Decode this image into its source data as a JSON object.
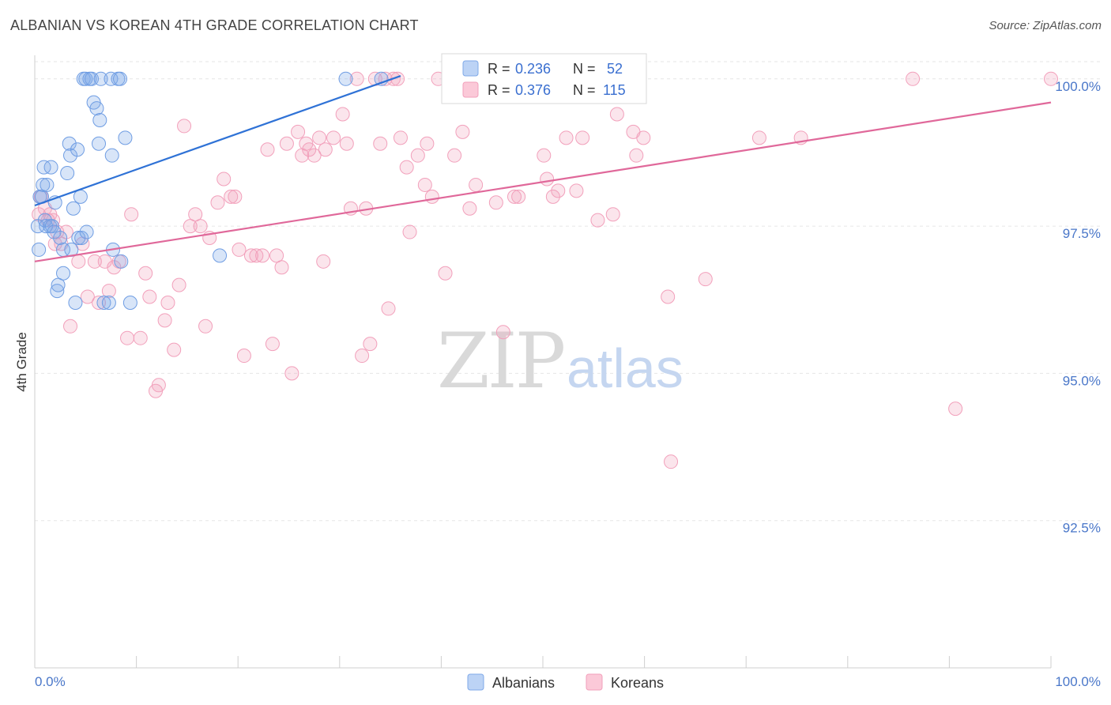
{
  "header": {
    "title": "ALBANIAN VS KOREAN 4TH GRADE CORRELATION CHART",
    "source": "Source: ZipAtlas.com"
  },
  "watermark": {
    "zip": "ZIP",
    "atlas": "atlas"
  },
  "legend": {
    "r_label": "R =",
    "n_label": "N =",
    "albanians": {
      "r": "0.236",
      "n": "52"
    },
    "koreans": {
      "r": "0.376",
      "n": "115"
    }
  },
  "chart_data": {
    "type": "scatter",
    "title": "ALBANIAN VS KOREAN 4TH GRADE CORRELATION CHART",
    "xlabel": "",
    "ylabel": "4th Grade",
    "xlim": [
      0,
      100
    ],
    "ylim": [
      90.0,
      100.4
    ],
    "x_tick_labels": [
      "0.0%",
      "100.0%"
    ],
    "y_ticks": [
      100.0,
      97.5,
      95.0,
      92.5
    ],
    "y_tick_labels": [
      "100.0%",
      "97.5%",
      "95.0%",
      "92.5%"
    ],
    "grid": true,
    "colors": {
      "albanians": "#7fa9e8",
      "albanians_line": "#2f72d6",
      "koreans": "#f2a0bb",
      "koreans_line": "#e0689a"
    },
    "series": [
      {
        "name": "Albanians",
        "r": 0.236,
        "n": 52,
        "trend": {
          "x": [
            0,
            36
          ],
          "y": [
            97.85,
            100.05
          ]
        },
        "points": [
          [
            0.3,
            97.5
          ],
          [
            0.4,
            97.1
          ],
          [
            0.5,
            98.0
          ],
          [
            0.7,
            98.0
          ],
          [
            0.8,
            98.2
          ],
          [
            0.9,
            98.5
          ],
          [
            1.0,
            97.6
          ],
          [
            1.1,
            97.5
          ],
          [
            1.2,
            98.2
          ],
          [
            1.5,
            97.5
          ],
          [
            1.6,
            98.5
          ],
          [
            1.7,
            97.5
          ],
          [
            1.9,
            97.4
          ],
          [
            2.0,
            97.9
          ],
          [
            2.2,
            96.4
          ],
          [
            2.3,
            96.5
          ],
          [
            2.5,
            97.3
          ],
          [
            2.8,
            96.7
          ],
          [
            2.8,
            97.1
          ],
          [
            3.2,
            98.4
          ],
          [
            3.4,
            98.9
          ],
          [
            3.5,
            98.7
          ],
          [
            3.6,
            97.1
          ],
          [
            3.8,
            97.8
          ],
          [
            4.0,
            96.2
          ],
          [
            4.2,
            98.8
          ],
          [
            4.3,
            97.3
          ],
          [
            4.5,
            98.0
          ],
          [
            4.6,
            97.3
          ],
          [
            4.8,
            100.0
          ],
          [
            5.0,
            100.0
          ],
          [
            5.1,
            97.4
          ],
          [
            5.4,
            100.0
          ],
          [
            5.6,
            100.0
          ],
          [
            5.8,
            99.6
          ],
          [
            6.1,
            99.5
          ],
          [
            6.3,
            98.9
          ],
          [
            6.4,
            99.3
          ],
          [
            6.5,
            100.0
          ],
          [
            6.8,
            96.2
          ],
          [
            7.3,
            96.2
          ],
          [
            7.5,
            100.0
          ],
          [
            7.6,
            98.7
          ],
          [
            7.7,
            97.1
          ],
          [
            8.2,
            100.0
          ],
          [
            8.4,
            100.0
          ],
          [
            8.5,
            96.9
          ],
          [
            8.9,
            99.0
          ],
          [
            9.4,
            96.2
          ],
          [
            18.2,
            97.0
          ],
          [
            30.6,
            100.0
          ],
          [
            34.1,
            100.0
          ]
        ]
      },
      {
        "name": "Koreans",
        "r": 0.376,
        "n": 115,
        "trend": {
          "x": [
            0,
            100
          ],
          "y": [
            96.9,
            99.6
          ]
        },
        "points": [
          [
            0.4,
            97.7
          ],
          [
            0.6,
            98.0
          ],
          [
            1.0,
            97.8
          ],
          [
            1.3,
            97.6
          ],
          [
            1.5,
            97.7
          ],
          [
            1.8,
            97.6
          ],
          [
            2.0,
            97.2
          ],
          [
            2.2,
            97.4
          ],
          [
            2.6,
            97.2
          ],
          [
            3.1,
            97.4
          ],
          [
            3.5,
            95.8
          ],
          [
            4.3,
            96.9
          ],
          [
            4.7,
            97.2
          ],
          [
            5.2,
            96.3
          ],
          [
            5.9,
            96.9
          ],
          [
            6.3,
            96.2
          ],
          [
            6.9,
            96.9
          ],
          [
            7.3,
            96.4
          ],
          [
            7.8,
            96.8
          ],
          [
            8.3,
            96.9
          ],
          [
            9.1,
            95.6
          ],
          [
            9.5,
            97.7
          ],
          [
            10.4,
            95.6
          ],
          [
            10.9,
            96.7
          ],
          [
            11.3,
            96.3
          ],
          [
            11.9,
            94.7
          ],
          [
            12.2,
            94.8
          ],
          [
            12.8,
            95.9
          ],
          [
            13.1,
            96.2
          ],
          [
            13.7,
            95.4
          ],
          [
            14.2,
            96.5
          ],
          [
            14.7,
            99.2
          ],
          [
            15.3,
            97.5
          ],
          [
            15.8,
            97.7
          ],
          [
            16.3,
            97.5
          ],
          [
            16.8,
            95.8
          ],
          [
            17.2,
            97.3
          ],
          [
            18.0,
            97.9
          ],
          [
            18.6,
            98.3
          ],
          [
            19.3,
            98.0
          ],
          [
            19.7,
            98.0
          ],
          [
            20.1,
            97.1
          ],
          [
            20.6,
            95.3
          ],
          [
            21.3,
            97.0
          ],
          [
            21.8,
            97.0
          ],
          [
            22.4,
            97.0
          ],
          [
            22.9,
            98.8
          ],
          [
            23.4,
            95.5
          ],
          [
            23.8,
            97.0
          ],
          [
            24.3,
            96.8
          ],
          [
            24.8,
            98.9
          ],
          [
            25.3,
            95.0
          ],
          [
            25.9,
            99.1
          ],
          [
            26.3,
            98.7
          ],
          [
            26.7,
            98.9
          ],
          [
            27.0,
            98.8
          ],
          [
            27.5,
            98.7
          ],
          [
            28.0,
            99.0
          ],
          [
            28.4,
            96.9
          ],
          [
            28.6,
            98.8
          ],
          [
            29.4,
            99.0
          ],
          [
            30.3,
            99.4
          ],
          [
            30.7,
            98.9
          ],
          [
            31.1,
            97.8
          ],
          [
            31.7,
            100.0
          ],
          [
            32.2,
            95.3
          ],
          [
            32.6,
            97.8
          ],
          [
            33.0,
            95.5
          ],
          [
            33.5,
            100.0
          ],
          [
            34.0,
            98.9
          ],
          [
            34.5,
            100.0
          ],
          [
            34.8,
            96.1
          ],
          [
            35.3,
            100.0
          ],
          [
            35.7,
            100.0
          ],
          [
            36.0,
            99.0
          ],
          [
            36.6,
            98.5
          ],
          [
            36.9,
            97.4
          ],
          [
            37.7,
            98.7
          ],
          [
            38.4,
            98.2
          ],
          [
            38.6,
            98.9
          ],
          [
            39.1,
            98.0
          ],
          [
            39.7,
            100.0
          ],
          [
            40.4,
            96.7
          ],
          [
            40.9,
            100.0
          ],
          [
            41.3,
            98.7
          ],
          [
            42.1,
            99.1
          ],
          [
            42.8,
            97.8
          ],
          [
            43.4,
            98.2
          ],
          [
            45.4,
            97.9
          ],
          [
            46.1,
            95.7
          ],
          [
            46.9,
            100.0
          ],
          [
            47.2,
            98.0
          ],
          [
            47.6,
            98.0
          ],
          [
            49.4,
            100.0
          ],
          [
            50.1,
            98.7
          ],
          [
            50.4,
            98.3
          ],
          [
            51.0,
            98.0
          ],
          [
            51.5,
            98.1
          ],
          [
            52.3,
            99.0
          ],
          [
            53.3,
            98.1
          ],
          [
            53.9,
            99.0
          ],
          [
            55.4,
            97.6
          ],
          [
            56.9,
            97.7
          ],
          [
            57.3,
            99.4
          ],
          [
            58.9,
            99.1
          ],
          [
            59.2,
            98.7
          ],
          [
            59.9,
            99.0
          ],
          [
            62.3,
            96.3
          ],
          [
            62.6,
            93.5
          ],
          [
            66.0,
            96.6
          ],
          [
            71.3,
            99.0
          ],
          [
            75.4,
            99.0
          ],
          [
            86.4,
            100.0
          ],
          [
            90.6,
            94.4
          ],
          [
            100.0,
            100.0
          ]
        ]
      }
    ],
    "bottom_legend": [
      "Albanians",
      "Koreans"
    ]
  }
}
